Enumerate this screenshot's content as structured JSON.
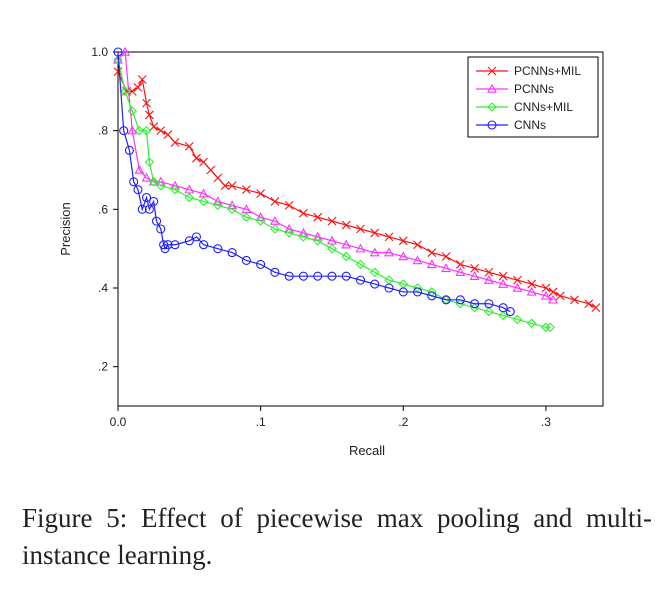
{
  "caption": "Figure 5: Effect of piecewise max pooling and multi-instance learning.",
  "chart_data": {
    "type": "line",
    "title": "",
    "xlabel": "Recall",
    "ylabel": "Precision",
    "xlim": [
      0,
      0.34
    ],
    "ylim": [
      0.1,
      1.0
    ],
    "x_ticks": [
      0,
      0.1,
      0.2,
      0.3
    ],
    "x_tick_labels": [
      "0.0",
      ".1",
      ".2",
      ".3"
    ],
    "y_ticks": [
      0.2,
      0.4,
      0.6,
      0.8,
      1.0
    ],
    "y_tick_labels": [
      ".2",
      ".4",
      ".6",
      ".8",
      "1.0"
    ],
    "grid": false,
    "legend_position": "top-right",
    "series": [
      {
        "name": "PCNNs+MIL",
        "color": "#ff1010",
        "marker": "x",
        "x": [
          0.0,
          0.006,
          0.01,
          0.014,
          0.017,
          0.02,
          0.022,
          0.025,
          0.03,
          0.035,
          0.04,
          0.05,
          0.055,
          0.06,
          0.065,
          0.07,
          0.075,
          0.08,
          0.09,
          0.1,
          0.11,
          0.12,
          0.13,
          0.14,
          0.15,
          0.16,
          0.17,
          0.18,
          0.19,
          0.2,
          0.21,
          0.22,
          0.23,
          0.24,
          0.25,
          0.26,
          0.27,
          0.28,
          0.29,
          0.3,
          0.305,
          0.31,
          0.32,
          0.33,
          0.335
        ],
        "y": [
          0.95,
          0.9,
          0.9,
          0.91,
          0.93,
          0.87,
          0.84,
          0.81,
          0.8,
          0.79,
          0.77,
          0.76,
          0.73,
          0.72,
          0.7,
          0.68,
          0.66,
          0.66,
          0.65,
          0.64,
          0.62,
          0.61,
          0.59,
          0.58,
          0.57,
          0.56,
          0.55,
          0.54,
          0.53,
          0.52,
          0.51,
          0.49,
          0.48,
          0.46,
          0.45,
          0.44,
          0.43,
          0.42,
          0.41,
          0.4,
          0.39,
          0.38,
          0.37,
          0.36,
          0.35
        ]
      },
      {
        "name": "PCNNs",
        "color": "#ff30ff",
        "marker": "triangle",
        "x": [
          0.0,
          0.005,
          0.01,
          0.015,
          0.02,
          0.025,
          0.03,
          0.04,
          0.05,
          0.06,
          0.07,
          0.08,
          0.09,
          0.1,
          0.11,
          0.12,
          0.13,
          0.14,
          0.15,
          0.16,
          0.17,
          0.18,
          0.19,
          0.2,
          0.21,
          0.22,
          0.23,
          0.24,
          0.25,
          0.26,
          0.27,
          0.28,
          0.29,
          0.3,
          0.305
        ],
        "y": [
          0.98,
          1.0,
          0.8,
          0.7,
          0.68,
          0.67,
          0.67,
          0.66,
          0.65,
          0.64,
          0.62,
          0.61,
          0.6,
          0.58,
          0.57,
          0.55,
          0.54,
          0.53,
          0.52,
          0.51,
          0.5,
          0.49,
          0.49,
          0.48,
          0.47,
          0.46,
          0.45,
          0.44,
          0.43,
          0.42,
          0.41,
          0.4,
          0.39,
          0.38,
          0.37
        ]
      },
      {
        "name": "CNNs+MIL",
        "color": "#30f030",
        "marker": "diamond",
        "x": [
          0.0,
          0.005,
          0.01,
          0.015,
          0.02,
          0.022,
          0.025,
          0.03,
          0.04,
          0.05,
          0.06,
          0.07,
          0.08,
          0.09,
          0.1,
          0.11,
          0.12,
          0.13,
          0.14,
          0.15,
          0.16,
          0.17,
          0.18,
          0.19,
          0.2,
          0.21,
          0.22,
          0.23,
          0.24,
          0.25,
          0.26,
          0.27,
          0.28,
          0.29,
          0.3,
          0.303
        ],
        "y": [
          0.98,
          0.9,
          0.85,
          0.8,
          0.8,
          0.72,
          0.67,
          0.66,
          0.65,
          0.63,
          0.62,
          0.61,
          0.6,
          0.58,
          0.57,
          0.55,
          0.54,
          0.53,
          0.52,
          0.5,
          0.48,
          0.46,
          0.44,
          0.42,
          0.41,
          0.4,
          0.39,
          0.37,
          0.36,
          0.35,
          0.34,
          0.33,
          0.32,
          0.31,
          0.3,
          0.3
        ]
      },
      {
        "name": "CNNs",
        "color": "#2020ff",
        "marker": "circle",
        "x": [
          0.0,
          0.004,
          0.008,
          0.011,
          0.014,
          0.017,
          0.02,
          0.022,
          0.025,
          0.027,
          0.03,
          0.032,
          0.033,
          0.035,
          0.04,
          0.05,
          0.055,
          0.06,
          0.07,
          0.08,
          0.09,
          0.1,
          0.11,
          0.12,
          0.13,
          0.14,
          0.15,
          0.16,
          0.17,
          0.18,
          0.19,
          0.2,
          0.21,
          0.22,
          0.23,
          0.24,
          0.25,
          0.26,
          0.27,
          0.275
        ],
        "y": [
          1.0,
          0.8,
          0.75,
          0.67,
          0.65,
          0.6,
          0.63,
          0.6,
          0.62,
          0.57,
          0.55,
          0.51,
          0.5,
          0.51,
          0.51,
          0.52,
          0.53,
          0.51,
          0.5,
          0.49,
          0.47,
          0.46,
          0.44,
          0.43,
          0.43,
          0.43,
          0.43,
          0.43,
          0.42,
          0.41,
          0.4,
          0.39,
          0.39,
          0.38,
          0.37,
          0.37,
          0.36,
          0.36,
          0.35,
          0.34
        ]
      }
    ]
  }
}
